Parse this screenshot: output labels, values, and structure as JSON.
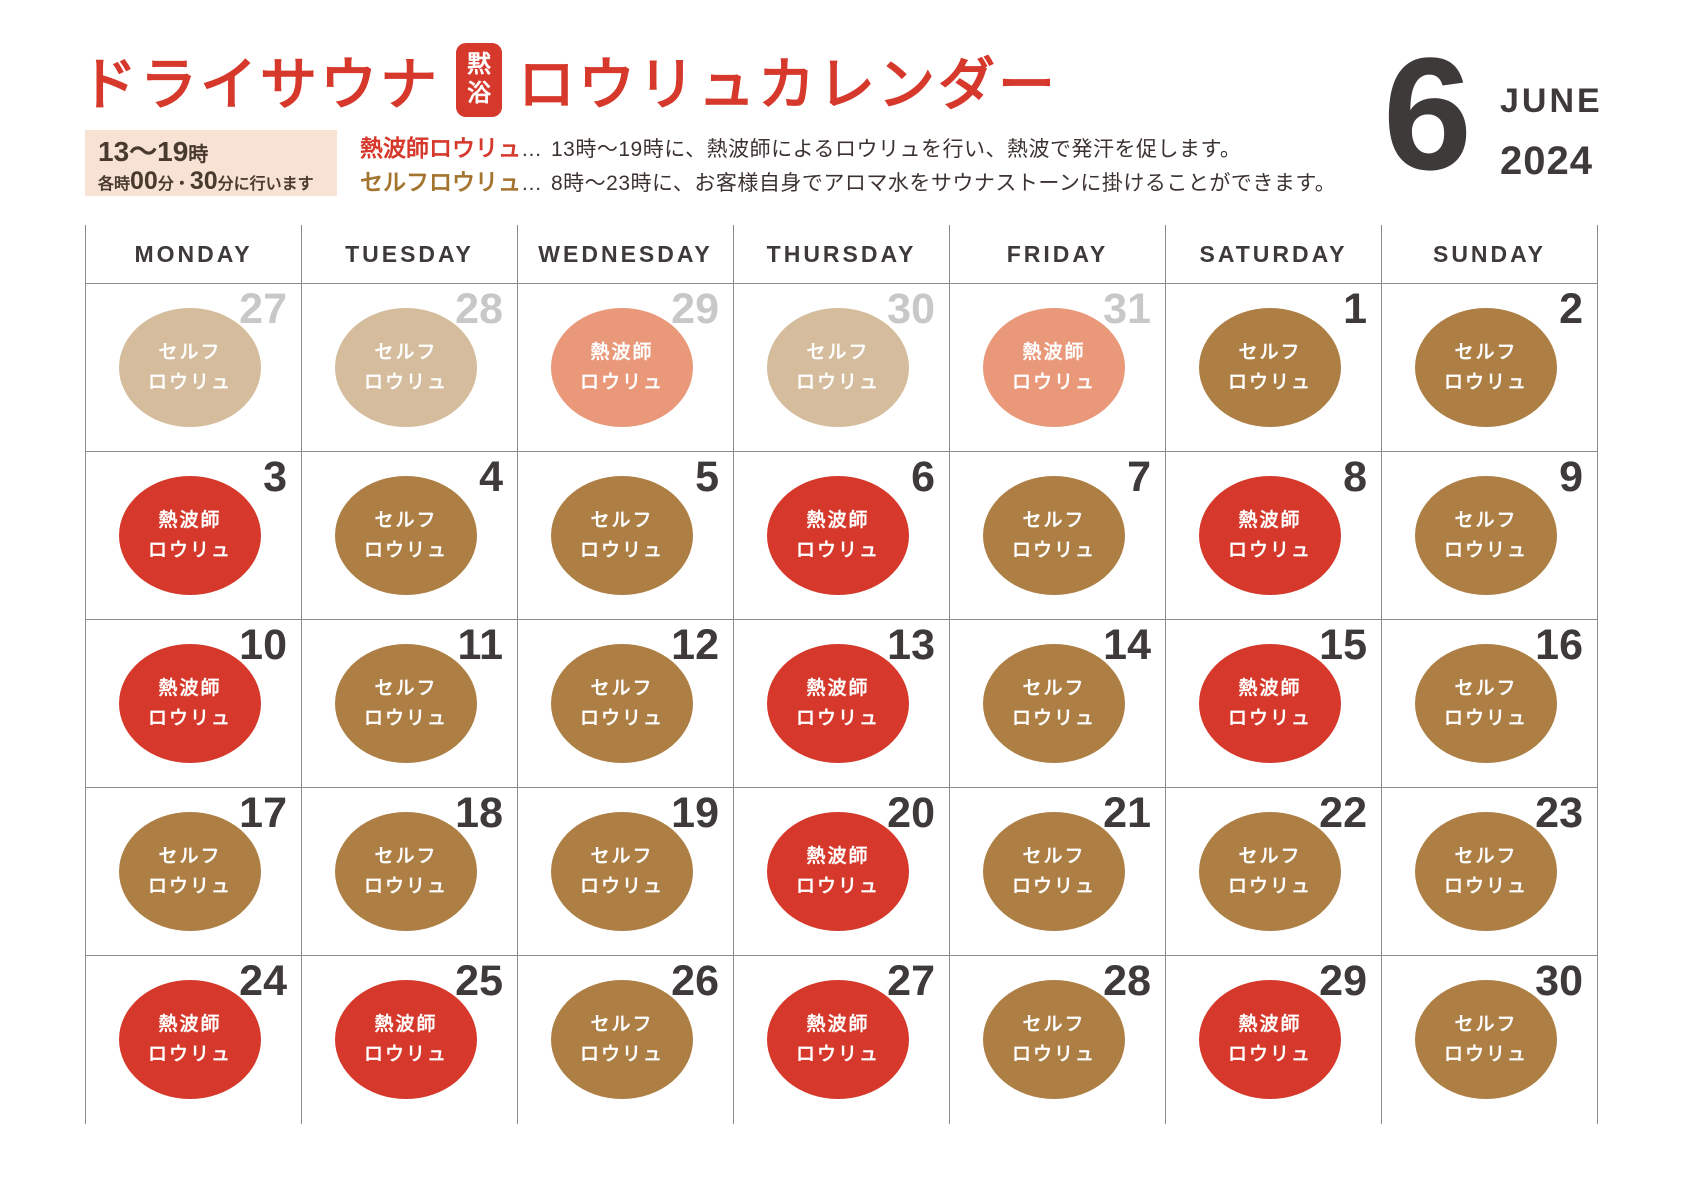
{
  "header": {
    "title_part1": "ドライサウナ",
    "title_badge_char1": "黙",
    "title_badge_char2": "浴",
    "title_part2": "ロウリュカレンダー"
  },
  "month": {
    "number": "6",
    "name": "JUNE",
    "year": "2024"
  },
  "schedule_note": {
    "hours_range": "13〜19",
    "hours_unit": "時",
    "line2_prefix": "各時",
    "line2_num1": "00",
    "line2_mid": "分・",
    "line2_num2": "30",
    "line2_suffix": "分に行います"
  },
  "legend": {
    "rows": [
      {
        "label": "熱波師ロウリュ",
        "separator": "…",
        "description": "13時〜19時に、熱波師によるロウリュを行い、熱波で発汗を促します。"
      },
      {
        "label": "セルフロウリュ",
        "separator": "…",
        "description": "8時〜23時に、お客様自身でアロマ水をサウナストーンに掛けることができます。"
      }
    ]
  },
  "calendar": {
    "weekdays": [
      "MONDAY",
      "TUESDAY",
      "WEDNESDAY",
      "THURSDAY",
      "FRIDAY",
      "SATURDAY",
      "SUNDAY"
    ],
    "event_types": {
      "netsuhashi": {
        "line1": "熱波師",
        "line2": "ロウリュ"
      },
      "self": {
        "line1": "セルフ",
        "line2": "ロウリュ"
      }
    },
    "days": [
      {
        "date": "27",
        "month": "prev",
        "type": "self"
      },
      {
        "date": "28",
        "month": "prev",
        "type": "self"
      },
      {
        "date": "29",
        "month": "prev",
        "type": "netsuhashi"
      },
      {
        "date": "30",
        "month": "prev",
        "type": "self"
      },
      {
        "date": "31",
        "month": "prev",
        "type": "netsuhashi"
      },
      {
        "date": "1",
        "month": "current",
        "type": "self"
      },
      {
        "date": "2",
        "month": "current",
        "type": "self"
      },
      {
        "date": "3",
        "month": "current",
        "type": "netsuhashi"
      },
      {
        "date": "4",
        "month": "current",
        "type": "self"
      },
      {
        "date": "5",
        "month": "current",
        "type": "self"
      },
      {
        "date": "6",
        "month": "current",
        "type": "netsuhashi"
      },
      {
        "date": "7",
        "month": "current",
        "type": "self"
      },
      {
        "date": "8",
        "month": "current",
        "type": "netsuhashi"
      },
      {
        "date": "9",
        "month": "current",
        "type": "self"
      },
      {
        "date": "10",
        "month": "current",
        "type": "netsuhashi"
      },
      {
        "date": "11",
        "month": "current",
        "type": "self"
      },
      {
        "date": "12",
        "month": "current",
        "type": "self"
      },
      {
        "date": "13",
        "month": "current",
        "type": "netsuhashi"
      },
      {
        "date": "14",
        "month": "current",
        "type": "self"
      },
      {
        "date": "15",
        "month": "current",
        "type": "netsuhashi"
      },
      {
        "date": "16",
        "month": "current",
        "type": "self"
      },
      {
        "date": "17",
        "month": "current",
        "type": "self"
      },
      {
        "date": "18",
        "month": "current",
        "type": "self"
      },
      {
        "date": "19",
        "month": "current",
        "type": "self"
      },
      {
        "date": "20",
        "month": "current",
        "type": "netsuhashi"
      },
      {
        "date": "21",
        "month": "current",
        "type": "self"
      },
      {
        "date": "22",
        "month": "current",
        "type": "self"
      },
      {
        "date": "23",
        "month": "current",
        "type": "self"
      },
      {
        "date": "24",
        "month": "current",
        "type": "netsuhashi"
      },
      {
        "date": "25",
        "month": "current",
        "type": "netsuhashi"
      },
      {
        "date": "26",
        "month": "current",
        "type": "self"
      },
      {
        "date": "27",
        "month": "current",
        "type": "netsuhashi"
      },
      {
        "date": "28",
        "month": "current",
        "type": "self"
      },
      {
        "date": "29",
        "month": "current",
        "type": "netsuhashi"
      },
      {
        "date": "30",
        "month": "current",
        "type": "self"
      }
    ]
  },
  "colors": {
    "accent-red": "#d6392b",
    "netsuhashi-current": "#d6392b",
    "netsuhashi-prev": "#e9997a",
    "self-current": "#ad7f45",
    "self-prev": "#d4bc9c",
    "legend-self-label": "#a3742e",
    "ink": "#3e3a39",
    "muted-date": "#c8c8c8",
    "grid-line": "#8c8c8c",
    "note-bg": "#f8e2d4",
    "note-text": "#483a2e",
    "body-text": "#3c3330"
  }
}
